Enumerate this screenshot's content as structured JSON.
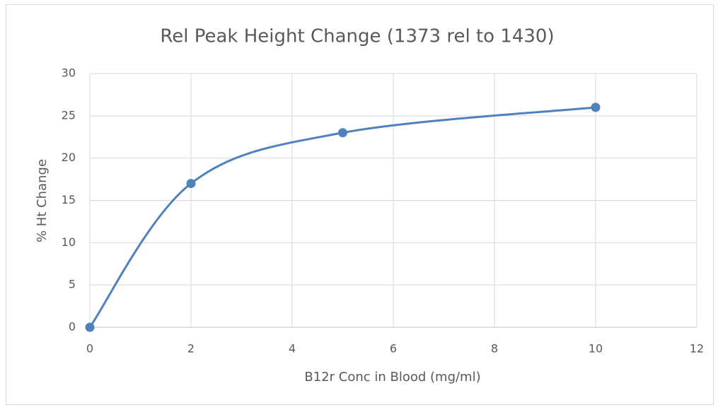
{
  "chart_data": {
    "type": "line",
    "title": "Rel Peak Height Change (1373 rel to 1430)",
    "x_label": "B12r Conc in Blood (mg/ml)",
    "y_label": "% Ht Change",
    "x": [
      0,
      2,
      5,
      10
    ],
    "values": [
      0,
      17,
      23,
      26
    ],
    "color": "#4f81bd",
    "smooth": true,
    "markers": true,
    "xlim": [
      0,
      12
    ],
    "xticks": [
      0,
      2,
      4,
      6,
      8,
      10,
      12
    ],
    "ylim": [
      0,
      30
    ],
    "yticks": [
      0,
      5,
      10,
      15,
      20,
      25,
      30
    ],
    "grid": true
  }
}
